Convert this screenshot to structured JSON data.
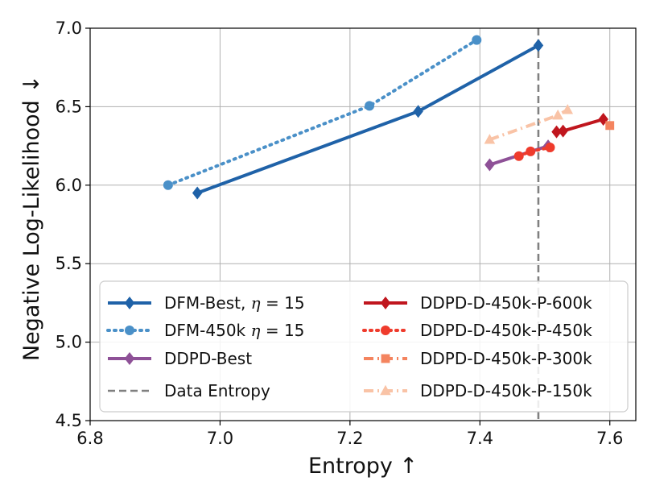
{
  "chart_data": {
    "type": "line",
    "xlabel": "Entropy ↑",
    "ylabel": "Negative Log-Likelihood ↓",
    "xlim": [
      6.8,
      7.64
    ],
    "ylim": [
      4.5,
      7.0
    ],
    "xticks": [
      6.8,
      7.0,
      7.2,
      7.4,
      7.6
    ],
    "yticks": [
      4.5,
      5.0,
      5.5,
      6.0,
      6.5,
      7.0
    ],
    "xtick_labels": [
      "6.8",
      "7.0",
      "7.2",
      "7.4",
      "7.6"
    ],
    "ytick_labels": [
      "4.5",
      "5.0",
      "5.5",
      "6.0",
      "6.5",
      "7.0"
    ],
    "grid": true,
    "legend_position": "lower-center",
    "vlines": [
      {
        "name": "Data Entropy",
        "x": 7.49,
        "color": "#808080",
        "style": "dashed"
      }
    ],
    "series": [
      {
        "name": "DFM-Best, η = 15",
        "legend_main": "DFM-Best, ",
        "legend_eta": "η",
        "legend_suffix": " = 15",
        "color": "#1f62a8",
        "style": "solid",
        "marker": "diamond",
        "x": [
          6.965,
          7.305,
          7.49
        ],
        "y": [
          5.95,
          6.47,
          6.89
        ]
      },
      {
        "name": "DFM-450k η = 15",
        "legend_main": "DFM-450k ",
        "legend_eta": "η",
        "legend_suffix": " = 15",
        "color": "#4a90c8",
        "style": "dotted",
        "marker": "circle",
        "x": [
          6.92,
          7.23,
          7.395
        ],
        "y": [
          6.0,
          6.505,
          6.925
        ]
      },
      {
        "name": "DDPD-Best",
        "legend_main": "DDPD-Best",
        "color": "#8e5197",
        "style": "solid",
        "marker": "diamond",
        "x": [
          7.415,
          7.505
        ],
        "y": [
          6.13,
          6.25
        ]
      },
      {
        "name": "DDPD-D-450k-P-600k",
        "legend_main": "DDPD-D-450k-P-600k",
        "color": "#c0161e",
        "style": "solid",
        "marker": "diamond",
        "x": [
          7.518,
          7.528,
          7.59
        ],
        "y": [
          6.34,
          6.345,
          6.42
        ]
      },
      {
        "name": "DDPD-D-450k-P-450k",
        "legend_main": "DDPD-D-450k-P-450k",
        "color": "#ef3b2c",
        "style": "dotted",
        "marker": "circle",
        "x": [
          7.46,
          7.478,
          7.508
        ],
        "y": [
          6.185,
          6.215,
          6.24
        ]
      },
      {
        "name": "DDPD-D-450k-P-300k",
        "legend_main": "DDPD-D-450k-P-300k",
        "color": "#f4845f",
        "style": "dashdot",
        "marker": "square",
        "x": [
          7.6
        ],
        "y": [
          6.38
        ]
      },
      {
        "name": "DDPD-D-450k-P-150k",
        "legend_main": "DDPD-D-450k-P-150k",
        "color": "#f9c3a6",
        "style": "dashdot",
        "marker": "triangle",
        "x": [
          7.415,
          7.52,
          7.535
        ],
        "y": [
          6.29,
          6.445,
          6.48
        ]
      }
    ]
  }
}
